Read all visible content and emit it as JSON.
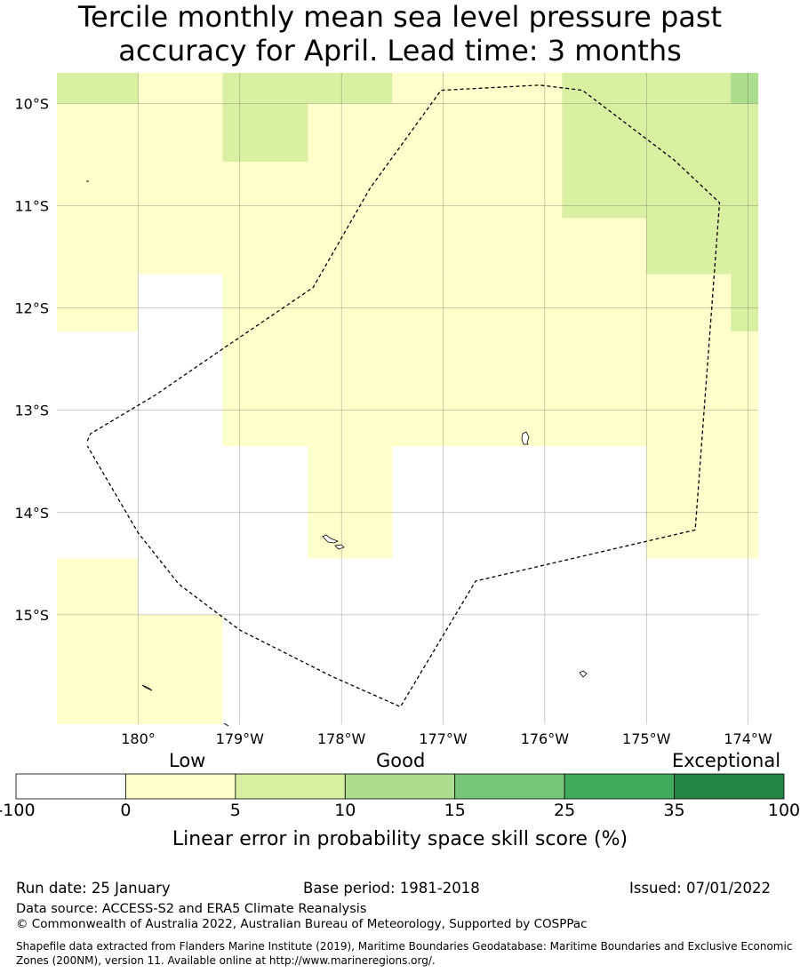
{
  "title": {
    "line1": "Tercile monthly mean sea level pressure past",
    "line2": "accuracy for April. Lead time: 3 months"
  },
  "map": {
    "lon_range": [
      -180.8,
      -173.9
    ],
    "lat_range": [
      -16.07,
      -9.7
    ],
    "lat_ticks": [
      {
        "value": -10,
        "label": "10°S"
      },
      {
        "value": -11,
        "label": "11°S"
      },
      {
        "value": -12,
        "label": "12°S"
      },
      {
        "value": -13,
        "label": "13°S"
      },
      {
        "value": -14,
        "label": "14°S"
      },
      {
        "value": -15,
        "label": "15°S"
      }
    ],
    "lon_ticks": [
      {
        "value": -180,
        "label": "180°"
      },
      {
        "value": -179,
        "label": "179°W"
      },
      {
        "value": -178,
        "label": "178°W"
      },
      {
        "value": -177,
        "label": "177°W"
      },
      {
        "value": -176,
        "label": "176°W"
      },
      {
        "value": -175,
        "label": "175°W"
      },
      {
        "value": -174,
        "label": "174°W"
      }
    ],
    "grid": true,
    "skill_cells": [
      {
        "lon": [
          -180.8,
          -180.0
        ],
        "lat": [
          -10.0,
          -9.7
        ],
        "class": "5-10"
      },
      {
        "lon": [
          -180.0,
          -179.17
        ],
        "lat": [
          -10.0,
          -9.7
        ],
        "class": "0-5"
      },
      {
        "lon": [
          -179.17,
          -177.5
        ],
        "lat": [
          -10.0,
          -9.7
        ],
        "class": "5-10"
      },
      {
        "lon": [
          -177.5,
          -175.83
        ],
        "lat": [
          -10.0,
          -9.7
        ],
        "class": "0-5"
      },
      {
        "lon": [
          -175.83,
          -174.17
        ],
        "lat": [
          -10.0,
          -9.7
        ],
        "class": "5-10"
      },
      {
        "lon": [
          -174.17,
          -173.9
        ],
        "lat": [
          -10.0,
          -9.7
        ],
        "class": "10-15"
      },
      {
        "lon": [
          -180.8,
          -173.9
        ],
        "lat": [
          -11.67,
          -10.0
        ],
        "class": "0-5"
      },
      {
        "lon": [
          -179.17,
          -178.33
        ],
        "lat": [
          -10.57,
          -10.0
        ],
        "class": "5-10"
      },
      {
        "lon": [
          -175.83,
          -174.17
        ],
        "lat": [
          -11.12,
          -10.0
        ],
        "class": "5-10"
      },
      {
        "lon": [
          -175.0,
          -174.17
        ],
        "lat": [
          -11.67,
          -11.12
        ],
        "class": "5-10"
      },
      {
        "lon": [
          -174.17,
          -173.9
        ],
        "lat": [
          -12.23,
          -10.0
        ],
        "class": "5-10"
      },
      {
        "lon": [
          -180.8,
          -180.0
        ],
        "lat": [
          -12.23,
          -11.67
        ],
        "class": "0-5"
      },
      {
        "lon": [
          -179.17,
          -174.17
        ],
        "lat": [
          -13.35,
          -11.67
        ],
        "class": "0-5"
      },
      {
        "lon": [
          -174.17,
          -173.9
        ],
        "lat": [
          -13.35,
          -12.23
        ],
        "class": "0-5"
      },
      {
        "lon": [
          -178.33,
          -177.5
        ],
        "lat": [
          -14.45,
          -13.35
        ],
        "class": "0-5"
      },
      {
        "lon": [
          -175.0,
          -173.9
        ],
        "lat": [
          -14.45,
          -13.35
        ],
        "class": "0-5"
      },
      {
        "lon": [
          -180.8,
          -180.0
        ],
        "lat": [
          -16.07,
          -14.45
        ],
        "class": "0-5"
      },
      {
        "lon": [
          -180.0,
          -179.17
        ],
        "lat": [
          -16.07,
          -15.0
        ],
        "class": "0-5"
      }
    ],
    "boundary": [
      [
        -180.5,
        -13.3
      ],
      [
        -180.47,
        -13.23
      ],
      [
        -179.83,
        -12.85
      ],
      [
        -179.17,
        -12.4
      ],
      [
        -178.28,
        -11.8
      ],
      [
        -177.72,
        -10.83
      ],
      [
        -177.02,
        -9.87
      ],
      [
        -176.05,
        -9.82
      ],
      [
        -175.63,
        -9.87
      ],
      [
        -174.73,
        -10.55
      ],
      [
        -174.28,
        -10.97
      ],
      [
        -174.52,
        -14.17
      ],
      [
        -176.68,
        -14.67
      ],
      [
        -177.42,
        -15.9
      ],
      [
        -178.1,
        -15.6
      ],
      [
        -179.0,
        -15.15
      ],
      [
        -179.6,
        -14.7
      ],
      [
        -180.0,
        -14.2
      ],
      [
        -180.5,
        -13.35
      ]
    ]
  },
  "legend": {
    "category_labels": [
      "Low",
      "Good",
      "Exceptional"
    ],
    "bins": [
      {
        "from": "-100",
        "to": "0",
        "color": "#ffffff"
      },
      {
        "from": "0",
        "to": "5",
        "color": "#ffffcc"
      },
      {
        "from": "5",
        "to": "10",
        "color": "#d9f0a3"
      },
      {
        "from": "10",
        "to": "15",
        "color": "#addd8e"
      },
      {
        "from": "15",
        "to": "25",
        "color": "#78c679"
      },
      {
        "from": "25",
        "to": "35",
        "color": "#41ab5d"
      },
      {
        "from": "35",
        "to": "100",
        "color": "#238443"
      }
    ],
    "tick_labels": [
      "-100",
      "0",
      "5",
      "10",
      "15",
      "25",
      "35",
      "100"
    ],
    "title": "Linear error in probability space skill score (%)"
  },
  "footer": {
    "run_date": "Run date: 25 January",
    "base_period": "Base period: 1981-2018",
    "issued": "Issued: 07/01/2022",
    "data_source": "Data source: ACCESS-S2 and ERA5 Climate Reanalysis",
    "copyright": "© Commonwealth of Australia 2022, Australian Bureau of Meteorology, Supported by COSPPac",
    "shapefile_note": "Shapefile data extracted from Flanders Marine Institute (2019), Maritime Boundaries Geodatabase: Maritime Boundaries and Exclusive Economic Zones (200NM), version 11. Available online at http://www.marineregions.org/."
  }
}
